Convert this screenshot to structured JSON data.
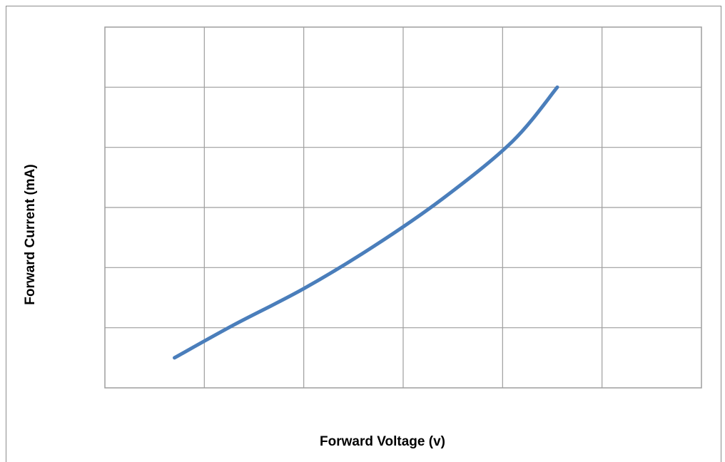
{
  "chart_data": {
    "type": "line",
    "title": "",
    "xlabel": "Forward Voltage (v)",
    "ylabel": "Forward Current  (mA)",
    "xlim": [
      0,
      6
    ],
    "ylim": [
      0,
      6
    ],
    "grid": true,
    "x_tick_labels_shown": false,
    "y_tick_labels_shown": false,
    "series": [
      {
        "color": "#4a7ebb",
        "x": [
          0.7,
          1.3,
          2.0,
          2.7,
          3.4,
          4.1,
          4.55
        ],
        "y": [
          0.5,
          1.05,
          1.65,
          2.35,
          3.15,
          4.1,
          5.0
        ]
      }
    ]
  },
  "colors": {
    "grid": "#9e9e9e",
    "plot_border": "#9e9e9e",
    "frame": "#8c8c8c",
    "line": "#4a7ebb"
  }
}
